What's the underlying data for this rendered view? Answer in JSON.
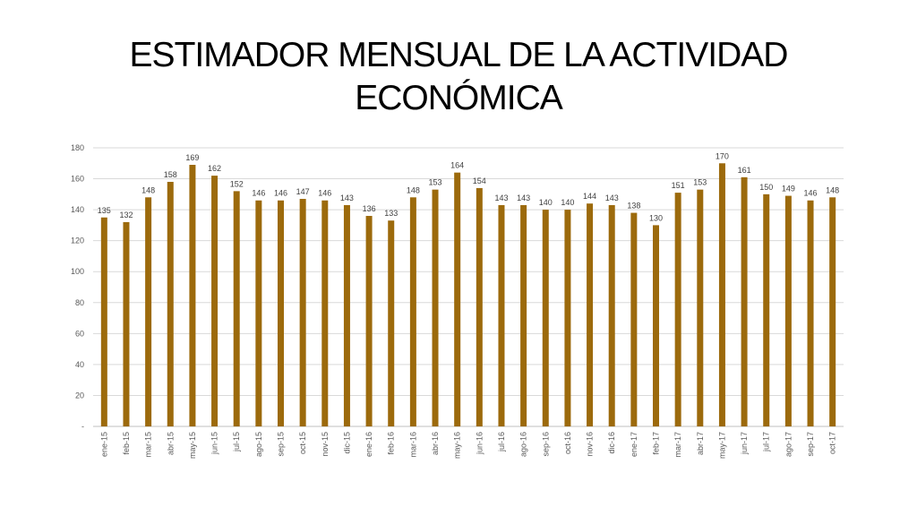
{
  "title": {
    "line1": "ESTIMADOR MENSUAL DE LA ACTIVIDAD",
    "line2": "ECONÓMICA"
  },
  "chart_data": {
    "type": "bar",
    "title": "ESTIMADOR MENSUAL DE LA ACTIVIDAD ECONÓMICA",
    "xlabel": "",
    "ylabel": "",
    "categories": [
      "ene-15",
      "feb-15",
      "mar-15",
      "abr-15",
      "may-15",
      "jun-15",
      "jul-15",
      "ago-15",
      "sep-15",
      "oct-15",
      "nov-15",
      "dic-15",
      "ene-16",
      "feb-16",
      "mar-16",
      "abr-16",
      "may-16",
      "jun-16",
      "jul-16",
      "ago-16",
      "sep-16",
      "oct-16",
      "nov-16",
      "dic-16",
      "ene-17",
      "feb-17",
      "mar-17",
      "abr-17",
      "may-17",
      "jun-17",
      "jul-17",
      "ago-17",
      "sep-17",
      "oct-17"
    ],
    "values": [
      135,
      132,
      148,
      158,
      169,
      162,
      152,
      146,
      146,
      147,
      146,
      143,
      136,
      133,
      148,
      153,
      164,
      154,
      143,
      143,
      140,
      140,
      144,
      143,
      138,
      130,
      151,
      153,
      170,
      161,
      150,
      149,
      146,
      148
    ],
    "ylim": [
      0,
      180
    ],
    "yticks": [
      0,
      20,
      40,
      60,
      80,
      100,
      120,
      140,
      160,
      180
    ],
    "ytick_labels": [
      "-",
      "20",
      "40",
      "60",
      "80",
      "100",
      "120",
      "140",
      "160",
      "180"
    ],
    "bar_color": "#9C6A0C",
    "grid": true,
    "data_labels": true
  }
}
